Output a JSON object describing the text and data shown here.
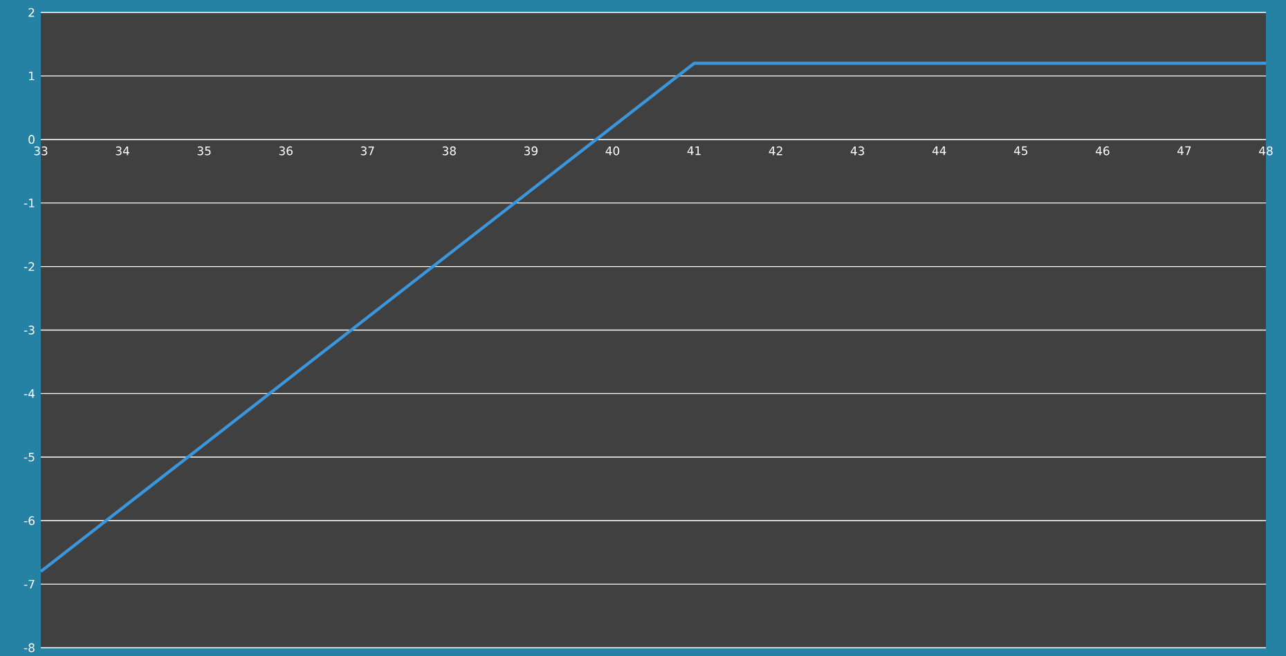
{
  "chart_data": {
    "type": "line",
    "x": [
      33,
      41,
      48
    ],
    "series": [
      {
        "color": "#3a97dd",
        "values": [
          -6.8,
          1.2,
          1.2
        ]
      }
    ],
    "xlim": [
      33,
      48
    ],
    "ylim": [
      -8,
      2
    ],
    "xticks": [
      33,
      34,
      35,
      36,
      37,
      38,
      39,
      40,
      41,
      42,
      43,
      44,
      45,
      46,
      47,
      48
    ],
    "yticks": [
      -8,
      -7,
      -6,
      -5,
      -4,
      -3,
      -2,
      -1,
      0,
      1,
      2
    ],
    "grid": "y",
    "marker": "none",
    "line_style": "solid"
  }
}
